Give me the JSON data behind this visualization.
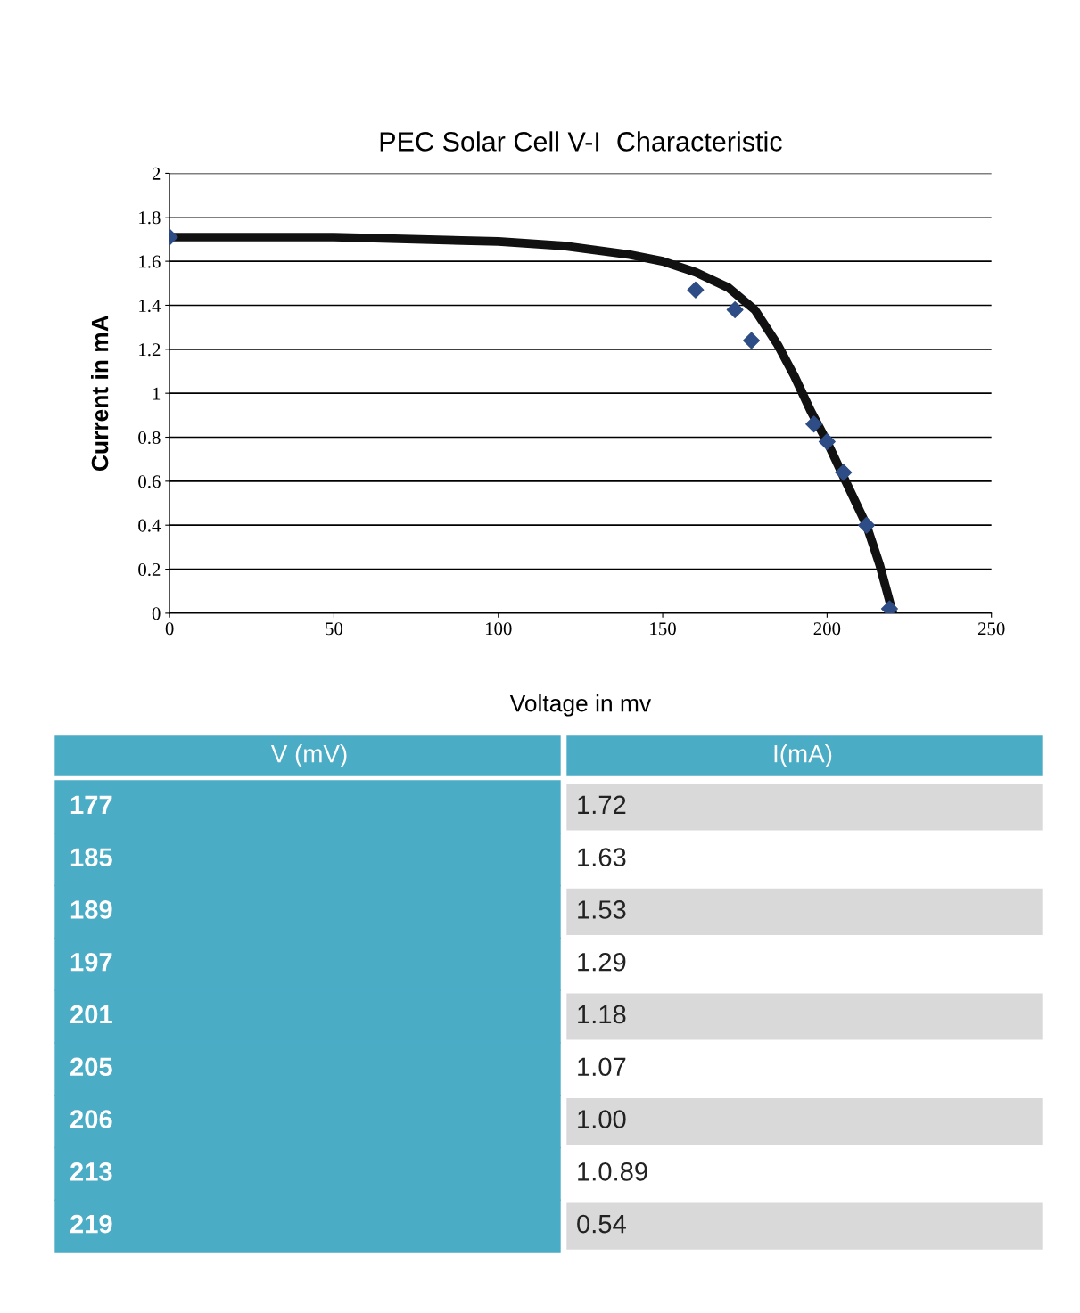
{
  "chart_data": {
    "type": "scatter",
    "title": "PEC Solar Cell V-I  Characteristic",
    "xlabel": "Voltage in mv",
    "ylabel": "Current in mA",
    "xlim": [
      0,
      250
    ],
    "xticks": [
      0,
      50,
      100,
      150,
      200,
      250
    ],
    "ylim": [
      0,
      2
    ],
    "yticks": [
      0,
      0.2,
      0.4,
      0.6,
      0.8,
      1,
      1.2,
      1.4,
      1.6,
      1.8,
      2
    ],
    "grid": "y",
    "legend": false,
    "series": [
      {
        "type": "line",
        "color": "#111111",
        "x": [
          0,
          50,
          100,
          120,
          140,
          150,
          160,
          170,
          178,
          185,
          190,
          195,
          200,
          205,
          212,
          216,
          220
        ],
        "values": [
          1.71,
          1.71,
          1.69,
          1.67,
          1.63,
          1.6,
          1.55,
          1.48,
          1.38,
          1.22,
          1.08,
          0.92,
          0.78,
          0.62,
          0.4,
          0.22,
          0.0
        ],
        "marker": "none"
      },
      {
        "color": "#2e4d86",
        "x": [
          0,
          160,
          172,
          177,
          196,
          200,
          205,
          212,
          219
        ],
        "values": [
          1.71,
          1.47,
          1.38,
          1.24,
          0.86,
          0.78,
          0.64,
          0.4,
          0.02
        ],
        "marker": "diamond"
      }
    ],
    "annotations": [
      "V (mV)",
      "I(mA)",
      "177",
      "1.72",
      "185",
      "1.63",
      "189",
      "1.53",
      "197",
      "1.29",
      "201",
      "1.18",
      "205",
      "1.07",
      "206",
      "1.00",
      "213",
      "1.0.89",
      "219",
      "0.54"
    ]
  }
}
